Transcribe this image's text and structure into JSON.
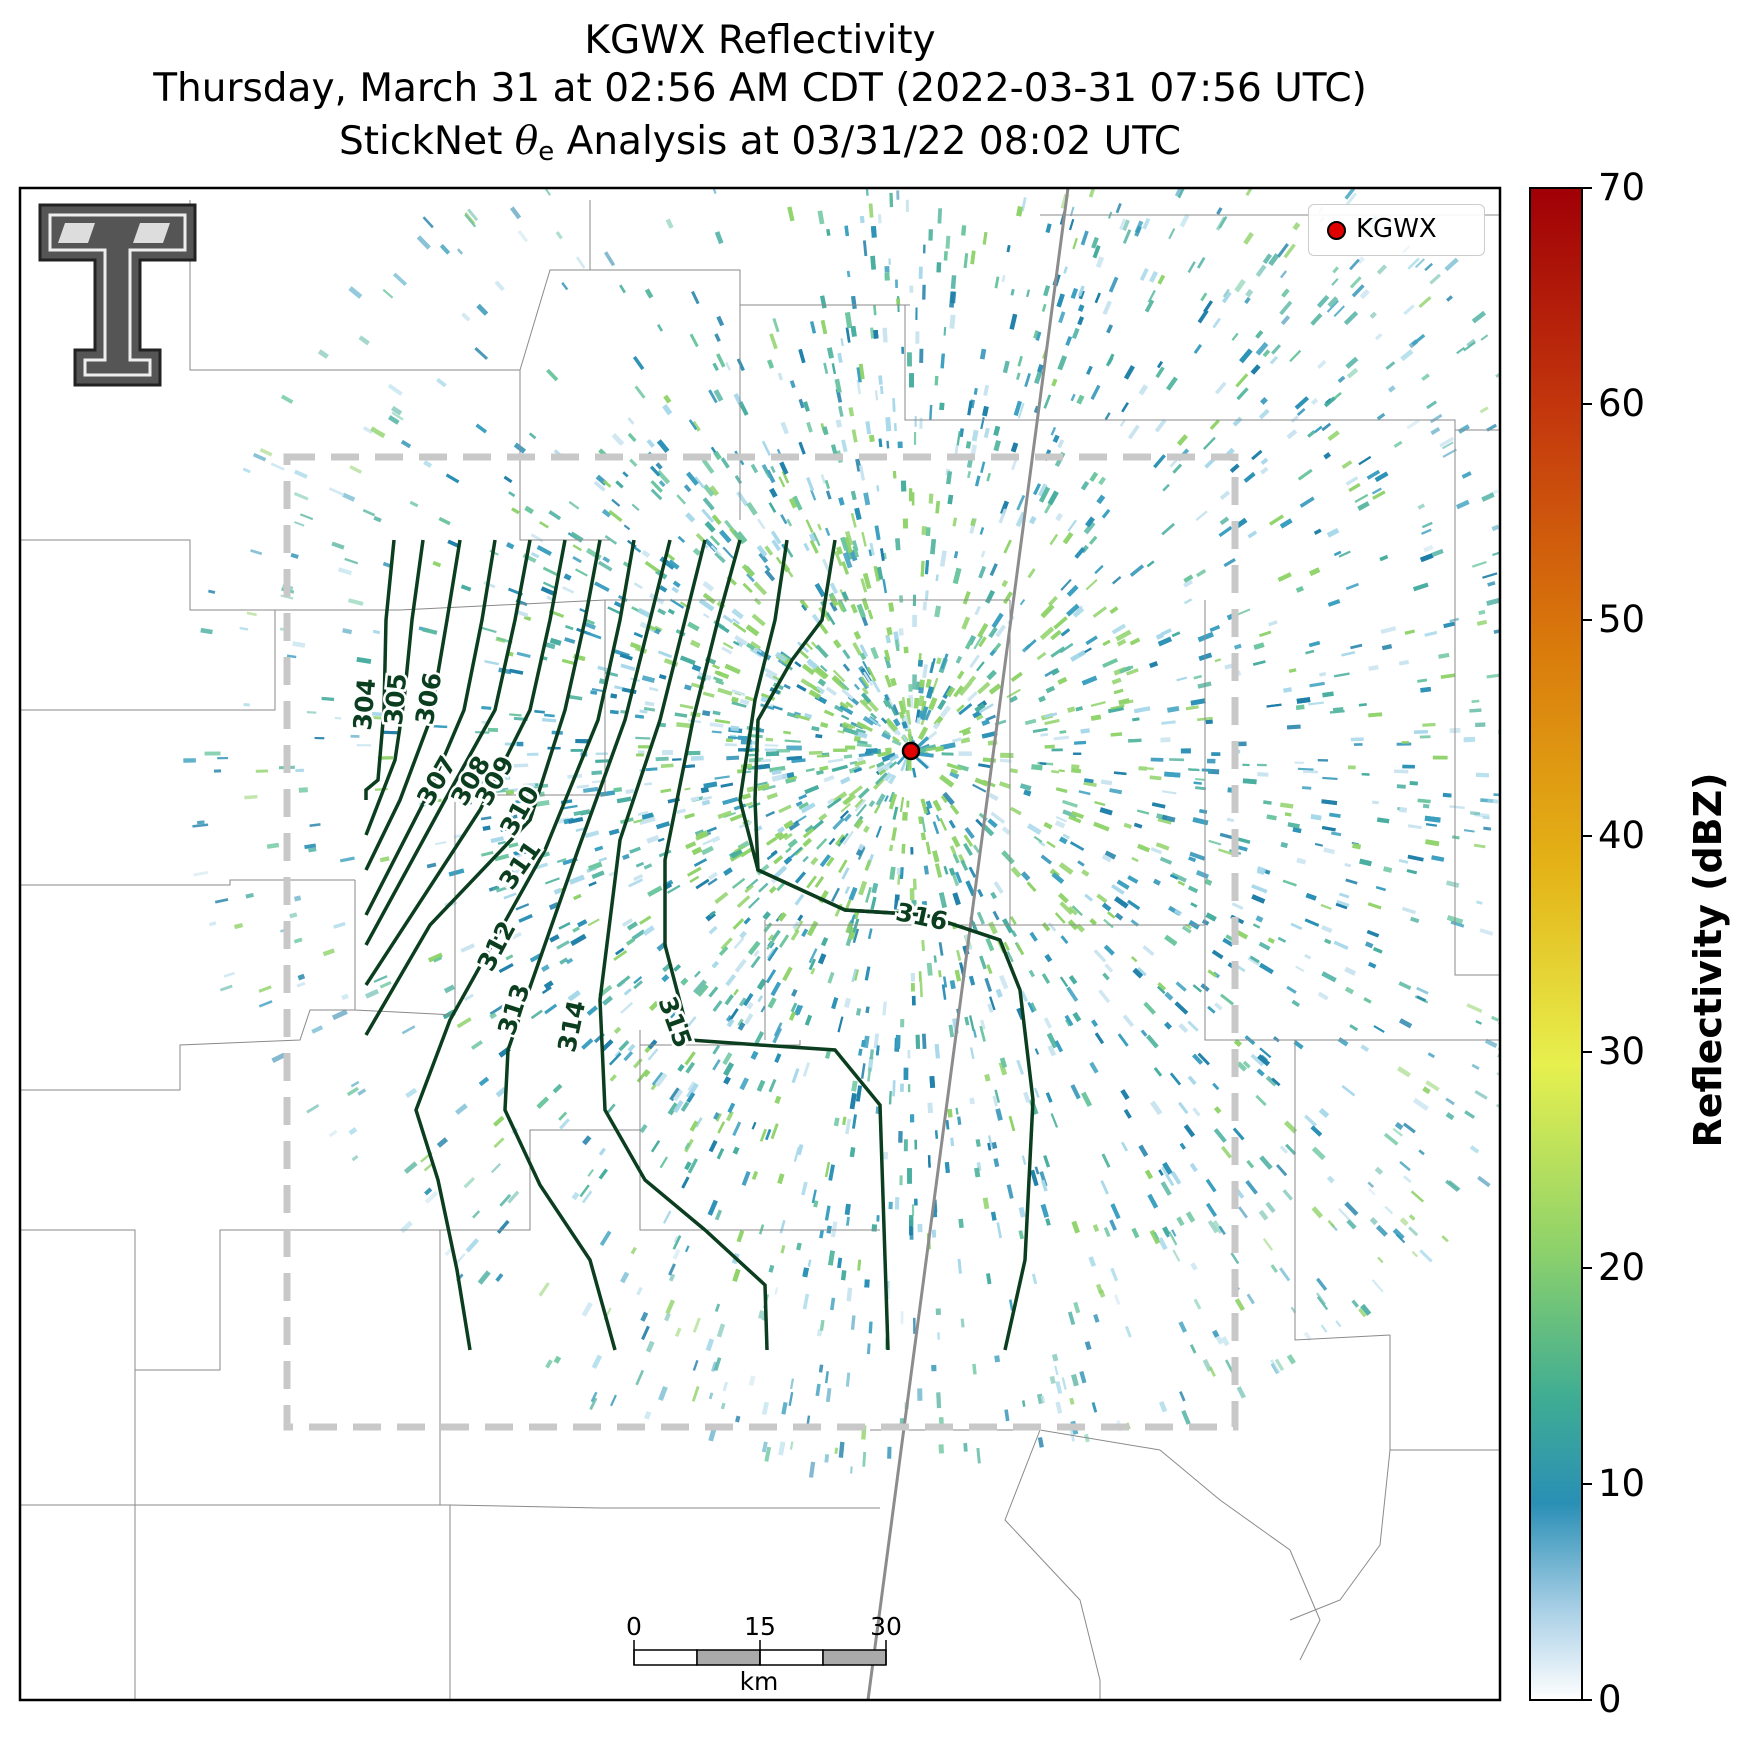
{
  "title": {
    "line1": "KGWX Reflectivity",
    "line2": "Thursday, March 31 at 02:56 AM CDT (2022-03-31 07:56 UTC)",
    "line3_prefix": "StickNet ",
    "line3_theta": "θ",
    "line3_sub": "e",
    "line3_suffix": " Analysis at 03/31/22 08:02 UTC"
  },
  "legend": {
    "label": "KGWX"
  },
  "colorbar": {
    "label": "Reflectivity (dBZ)",
    "ticks": [
      "0",
      "10",
      "20",
      "30",
      "40",
      "50",
      "60",
      "70"
    ],
    "min": 0,
    "max": 70
  },
  "scalebar": {
    "ticks": [
      "0",
      "15",
      "30"
    ],
    "unit": "km"
  },
  "contours": {
    "color": "#0b3d1f",
    "labels": [
      "304",
      "305",
      "306",
      "307",
      "308",
      "309",
      "310",
      "311",
      "312",
      "313",
      "314",
      "315",
      "316"
    ]
  },
  "radar_site": {
    "name": "KGWX",
    "color": "#e00000"
  },
  "analysis_box": {
    "style": "dashed",
    "color": "#c8c8c8"
  }
}
